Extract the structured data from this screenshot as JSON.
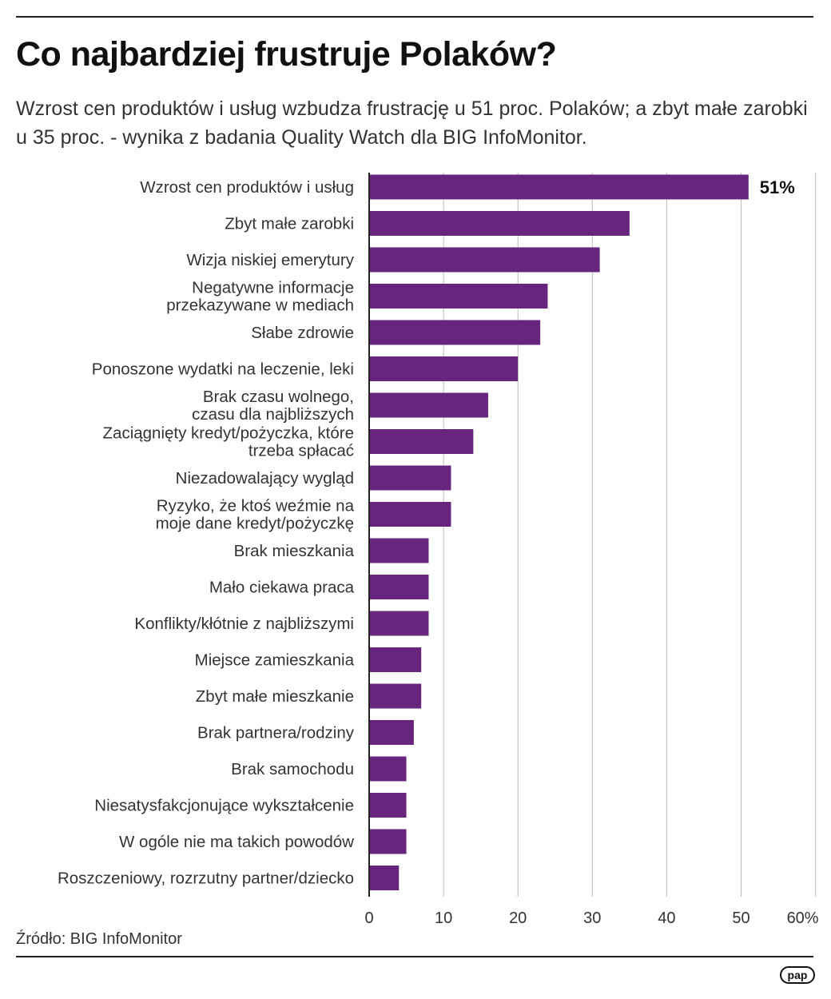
{
  "title": "Co najbardziej frustruje Polaków?",
  "subtitle": "Wzrost cen produktów i usług wzbudza frustrację u 51 proc. Polaków; a zbyt małe zarobki u 35 proc. - wynika z badania Quality Watch dla BIG InfoMonitor.",
  "source": "Źródło: BIG InfoMonitor",
  "logo_text": "pap",
  "colors": {
    "bar": "#67257e",
    "axis": "#222222",
    "grid": "#bbbbbb",
    "text": "#333333"
  },
  "chart_data": {
    "type": "bar",
    "orientation": "horizontal",
    "categories": [
      [
        "Wzrost cen produktów i usług"
      ],
      [
        "Zbyt małe zarobki"
      ],
      [
        "Wizja niskiej emerytury"
      ],
      [
        "Negatywne informacje",
        "przekazywane w mediach"
      ],
      [
        "Słabe zdrowie"
      ],
      [
        "Ponoszone wydatki na leczenie, leki"
      ],
      [
        "Brak czasu wolnego,",
        "czasu dla najbliższych"
      ],
      [
        "Zaciągnięty kredyt/pożyczka, które",
        "trzeba spłacać"
      ],
      [
        "Niezadowalający wygląd"
      ],
      [
        "Ryzyko, że ktoś weźmie na",
        "moje dane kredyt/pożyczkę"
      ],
      [
        "Brak mieszkania"
      ],
      [
        "Mało ciekawa praca"
      ],
      [
        "Konflikty/kłótnie z najbliższymi"
      ],
      [
        "Miejsce zamieszkania"
      ],
      [
        "Zbyt małe mieszkanie"
      ],
      [
        "Brak partnera/rodziny"
      ],
      [
        "Brak samochodu"
      ],
      [
        "Niesatysfakcjonujące wykształcenie"
      ],
      [
        "W ogóle nie ma takich powodów"
      ],
      [
        "Roszczeniowy, rozrzutny partner/dziecko"
      ]
    ],
    "values": [
      51,
      35,
      31,
      24,
      23,
      20,
      16,
      14,
      11,
      11,
      8,
      8,
      8,
      7,
      7,
      6,
      5,
      5,
      5,
      4
    ],
    "data_labels": [
      {
        "index": 0,
        "text": "51%"
      }
    ],
    "xlim": [
      0,
      60
    ],
    "x_ticks": [
      "0",
      "10",
      "20",
      "30",
      "40",
      "50",
      "60%"
    ],
    "x_tick_values": [
      0,
      10,
      20,
      30,
      40,
      50,
      60
    ],
    "grid": true,
    "unit": "%"
  }
}
